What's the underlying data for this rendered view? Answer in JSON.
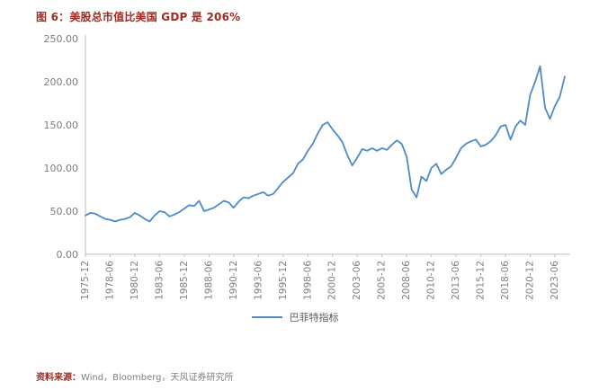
{
  "title": "图 6：美股总市值比美国 GDP 是 206%",
  "legend": {
    "label": "巴菲特指标"
  },
  "source": {
    "prefix": "资料来源：",
    "text": "Wind，Bloomberg，天风证券研究所"
  },
  "colors": {
    "title": "#9E2A21",
    "line": "#4D8BC8",
    "axis": "#BFBFBF",
    "tick_text": "#7F7F7F",
    "source_prefix": "#9E2A21",
    "source_text": "#808080"
  },
  "chart_data": {
    "type": "line",
    "title": "美股总市值比美国GDP",
    "xlabel": "",
    "ylabel": "",
    "ylim": [
      0,
      250
    ],
    "y_ticks": [
      "0.00",
      "50.00",
      "100.00",
      "150.00",
      "200.00",
      "250.00"
    ],
    "x_tick_every": 5,
    "grid": false,
    "legend_position": "bottom",
    "series": [
      {
        "name": "巴菲特指标",
        "x": [
          "1975-12",
          "1976-06",
          "1976-12",
          "1977-06",
          "1977-12",
          "1978-06",
          "1978-12",
          "1979-06",
          "1979-12",
          "1980-06",
          "1980-12",
          "1981-06",
          "1981-12",
          "1982-06",
          "1982-12",
          "1983-06",
          "1983-12",
          "1984-06",
          "1984-12",
          "1985-06",
          "1985-12",
          "1986-06",
          "1986-12",
          "1987-06",
          "1987-12",
          "1988-06",
          "1988-12",
          "1989-06",
          "1989-12",
          "1990-06",
          "1990-12",
          "1991-06",
          "1991-12",
          "1992-06",
          "1992-12",
          "1993-06",
          "1993-12",
          "1994-06",
          "1994-12",
          "1995-06",
          "1995-12",
          "1996-06",
          "1996-12",
          "1997-06",
          "1997-12",
          "1998-06",
          "1998-12",
          "1999-06",
          "1999-12",
          "2000-06",
          "2000-12",
          "2001-06",
          "2001-12",
          "2002-06",
          "2002-12",
          "2003-06",
          "2003-12",
          "2004-06",
          "2004-12",
          "2005-06",
          "2005-12",
          "2006-06",
          "2006-12",
          "2007-06",
          "2007-12",
          "2008-06",
          "2008-12",
          "2009-06",
          "2009-12",
          "2010-06",
          "2010-12",
          "2011-06",
          "2011-12",
          "2012-06",
          "2012-12",
          "2013-06",
          "2013-12",
          "2014-06",
          "2014-12",
          "2015-06",
          "2015-12",
          "2016-06",
          "2016-12",
          "2017-06",
          "2017-12",
          "2018-06",
          "2018-12",
          "2019-06",
          "2019-12",
          "2020-06",
          "2020-12",
          "2021-06",
          "2021-12",
          "2022-06",
          "2022-12",
          "2023-06",
          "2023-12",
          "2024-06"
        ],
        "values": [
          45,
          48,
          47,
          44,
          41,
          40,
          38,
          40,
          41,
          43,
          48,
          45,
          41,
          38,
          45,
          50,
          49,
          44,
          46,
          49,
          53,
          57,
          56,
          62,
          50,
          52,
          54,
          58,
          62,
          60,
          54,
          61,
          66,
          65,
          68,
          70,
          72,
          68,
          70,
          77,
          84,
          89,
          94,
          105,
          110,
          120,
          128,
          140,
          150,
          153,
          145,
          138,
          130,
          115,
          103,
          112,
          122,
          120,
          123,
          120,
          123,
          121,
          127,
          132,
          128,
          113,
          75,
          66,
          90,
          85,
          100,
          105,
          93,
          98,
          102,
          112,
          123,
          128,
          131,
          133,
          125,
          127,
          131,
          138,
          148,
          150,
          133,
          148,
          155,
          150,
          185,
          200,
          218,
          170,
          157,
          172,
          183,
          206
        ]
      }
    ]
  }
}
